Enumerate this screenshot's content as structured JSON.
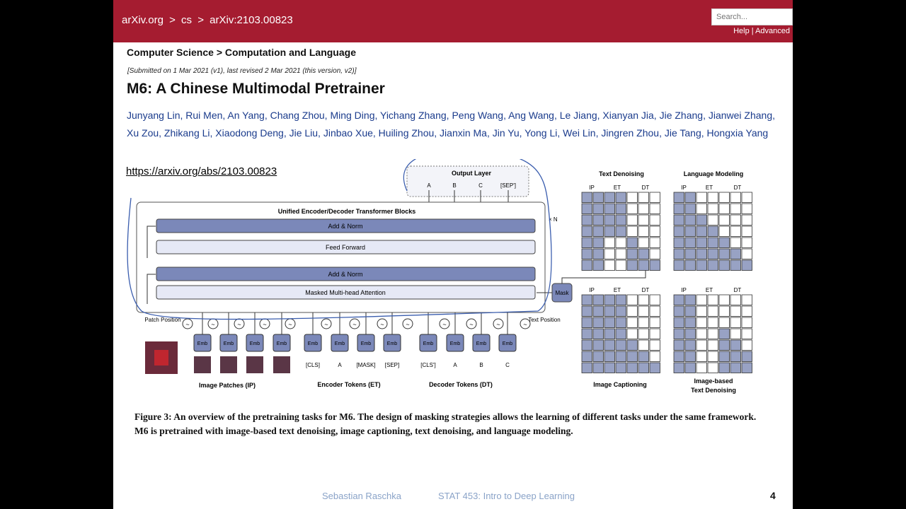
{
  "header": {
    "crumbs": [
      "arXiv.org",
      ">",
      "cs",
      ">",
      "arXiv:2103.00823"
    ],
    "search_placeholder": "Search...",
    "help": "Help",
    "sep": "|",
    "advanced": "Advanced"
  },
  "subject": "Computer Science > Computation and Language",
  "submitted": "[Submitted on 1 Mar 2021 (v1), last revised 2 Mar 2021 (this version, v2)]",
  "title": "M6: A Chinese Multimodal Pretrainer",
  "authors": "Junyang Lin, Rui Men, An Yang, Chang Zhou, Ming Ding, Yichang Zhang, Peng Wang, Ang Wang, Le Jiang, Xianyan Jia, Jie Zhang, Jianwei Zhang, Xu Zou, Zhikang Li, Xiaodong Deng, Jie Liu, Jinbao Xue, Huiling Zhou, Jianxin Ma, Jin Yu, Yong Li, Wei Lin, Jingren Zhou, Jie Tang, Hongxia Yang",
  "abs_url": "https://arxiv.org/abs/2103.00823",
  "figure": {
    "output_layer": "Output Layer",
    "outputs": [
      "A",
      "B",
      "C",
      "[SEP']"
    ],
    "block_title": "Unified Encoder/Decoder Transformer Blocks",
    "add_norm_top": "Add & Norm",
    "feed_forward": "Feed Forward",
    "add_norm_bottom": "Add & Norm",
    "attention": "Masked Multi-head Attention",
    "times_n": "× N",
    "mask": "Mask",
    "patch_position": "Patch Position",
    "text_position": "Text Position",
    "emb": "Emb",
    "tilde": "~",
    "encoder_tokens": [
      "[CLS]",
      "A",
      "[MASK]",
      "[SEP]"
    ],
    "decoder_tokens": [
      "[CLS']",
      "A",
      "B",
      "C"
    ],
    "group_image": "Image Patches (IP)",
    "group_encoder": "Encoder Tokens (ET)",
    "group_decoder": "Decoder Tokens (DT)",
    "panel_text_denoising": "Text Denoising",
    "panel_language_modeling": "Language Modeling",
    "panel_image_captioning": "Image Captioning",
    "panel_image_text_denoising": "Image-based Text Denoising",
    "matrix_labels": [
      "IP",
      "ET",
      "DT"
    ]
  },
  "caption": "Figure 3: An overview of the pretraining tasks for M6. The design of masking strategies allows the learning of different tasks under the same framework. M6 is pretrained with image-based text denoising, image captioning, text denoising, and language modeling.",
  "footer": {
    "author": "Sebastian Raschka",
    "course": "STAT 453: Intro to Deep Learning",
    "page": "4"
  },
  "colors": {
    "arxiv_red": "#a51c30",
    "dark_block": "#7b88b9",
    "light_block": "#e6e9f6",
    "grid_dark": "#98a2c4",
    "annotation_ink": "#3a5dae"
  }
}
